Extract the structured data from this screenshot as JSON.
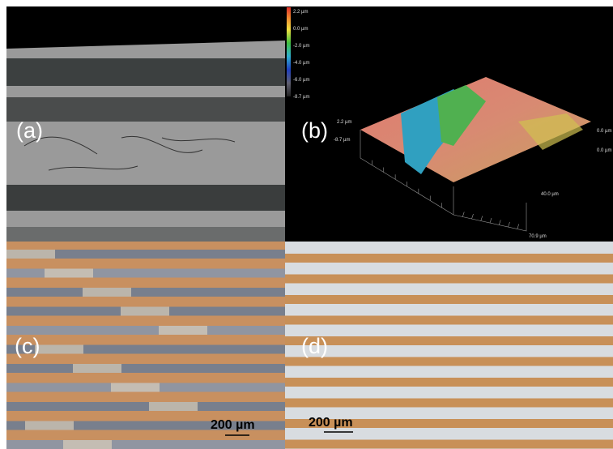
{
  "panels": [
    {
      "label": "(a)"
    },
    {
      "label": "(b)",
      "colorbar_ticks": [
        "2.2 µm",
        "0.0 µm",
        "-2.0 µm",
        "-4.0 µm",
        "-6.0 µm",
        "-8.7 µm"
      ],
      "axis_labels": {
        "z_top": "2.2 µm",
        "z_bottom": "-8.7 µm",
        "right_top": "0.0 µm",
        "right_front": "0.0 µm",
        "mid": "40.0 µm",
        "end": "70.9 µm"
      }
    },
    {
      "label": "(c)",
      "scale_bar": "200 µm"
    },
    {
      "label": "(d)",
      "scale_bar": "200 µm"
    }
  ]
}
